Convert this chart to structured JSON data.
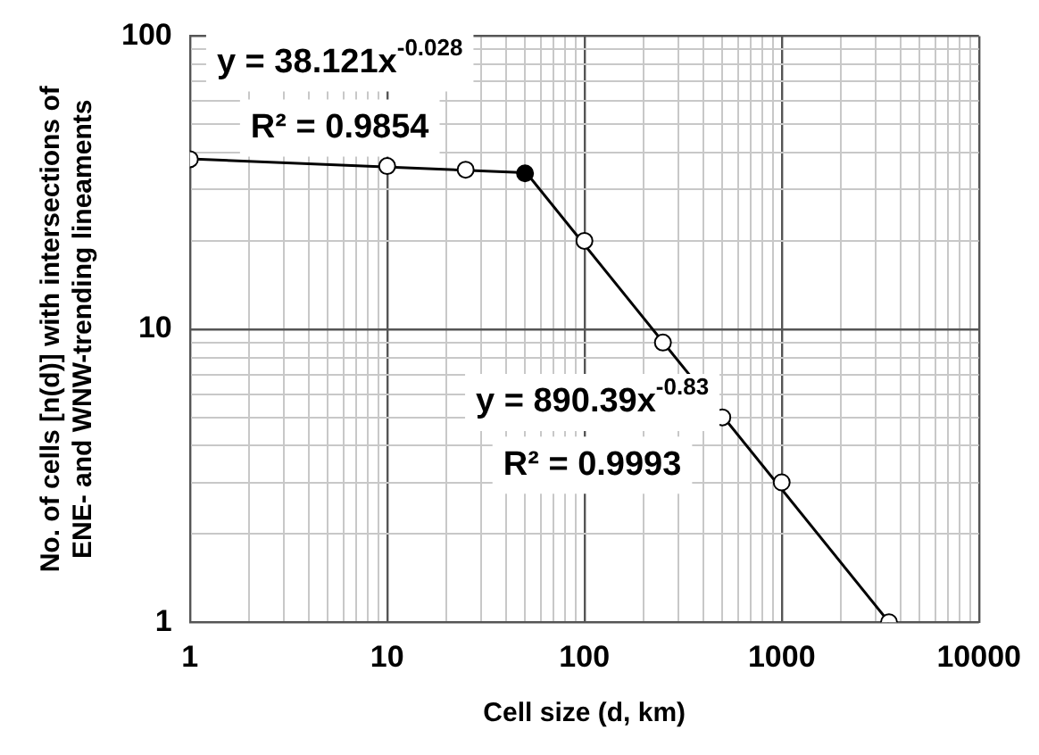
{
  "chart_data": {
    "type": "scatter",
    "xlabel": "Cell size (d, km)",
    "ylabel": "No. of cells [n(d)] with intersections of\nENE- and WNW-trending lineaments",
    "log": "xy",
    "grid": true,
    "legend": false,
    "marker": "circle",
    "xlim": [
      1,
      10000
    ],
    "ylim": [
      1,
      100
    ],
    "xticks": [
      1,
      {
        "value": 2,
        "label": null
      },
      {
        "value": 3,
        "label": null
      },
      {
        "value": 4,
        "label": null
      },
      {
        "value": 5,
        "label": null
      },
      {
        "value": 6,
        "label": null
      },
      {
        "value": 7,
        "label": null
      },
      {
        "value": 8,
        "label": null
      },
      {
        "value": 9,
        "label": null
      },
      10,
      {
        "value": 20,
        "label": null
      },
      {
        "value": 30,
        "label": null
      },
      {
        "value": 40,
        "label": null
      },
      {
        "value": 50,
        "label": null
      },
      {
        "value": 60,
        "label": null
      },
      {
        "value": 70,
        "label": null
      },
      {
        "value": 80,
        "label": null
      },
      {
        "value": 90,
        "label": null
      },
      100,
      {
        "value": 200,
        "label": null
      },
      {
        "value": 300,
        "label": null
      },
      {
        "value": 400,
        "label": null
      },
      {
        "value": 500,
        "label": null
      },
      {
        "value": 600,
        "label": null
      },
      {
        "value": 700,
        "label": null
      },
      {
        "value": 800,
        "label": null
      },
      {
        "value": 900,
        "label": null
      },
      1000,
      {
        "value": 2000,
        "label": null
      },
      {
        "value": 3000,
        "label": null
      },
      {
        "value": 4000,
        "label": null
      },
      {
        "value": 5000,
        "label": null
      },
      {
        "value": 6000,
        "label": null
      },
      {
        "value": 7000,
        "label": null
      },
      {
        "value": 8000,
        "label": null
      },
      {
        "value": 9000,
        "label": null
      },
      10000
    ],
    "yticks": [
      1,
      {
        "value": 2,
        "label": null
      },
      {
        "value": 3,
        "label": null
      },
      {
        "value": 4,
        "label": null
      },
      {
        "value": 5,
        "label": null
      },
      {
        "value": 6,
        "label": null
      },
      {
        "value": 7,
        "label": null
      },
      {
        "value": 8,
        "label": null
      },
      {
        "value": 9,
        "label": null
      },
      10,
      {
        "value": 20,
        "label": null
      },
      {
        "value": 30,
        "label": null
      },
      {
        "value": 40,
        "label": null
      },
      {
        "value": 50,
        "label": null
      },
      {
        "value": 60,
        "label": null
      },
      {
        "value": 70,
        "label": null
      },
      {
        "value": 80,
        "label": null
      },
      {
        "value": 90,
        "label": null
      },
      100
    ],
    "series": [
      {
        "type": "line",
        "marker": "none",
        "color": "#000000",
        "x": [
          1,
          50
        ],
        "values": [
          38.1,
          34.2
        ]
      },
      {
        "type": "line",
        "marker": "none",
        "color": "#000000",
        "x": [
          50,
          3500
        ],
        "values": [
          34.6,
          1.0
        ]
      },
      {
        "x": [
          1,
          10,
          25,
          50,
          100,
          250,
          500,
          1000,
          3500
        ],
        "values": [
          38,
          36,
          35,
          34,
          20,
          9,
          5,
          3,
          1
        ],
        "colors": [
          "#ffffff",
          "#ffffff",
          "#ffffff",
          "#000000",
          "#ffffff",
          "#ffffff",
          "#ffffff",
          "#ffffff",
          "#ffffff"
        ]
      }
    ],
    "annotations": [
      "y = 38.121x$^{-0.028}$",
      "R² = 0.9854",
      "y = 890.39x$^{-0.83}$",
      "R² = 0.9993"
    ]
  }
}
